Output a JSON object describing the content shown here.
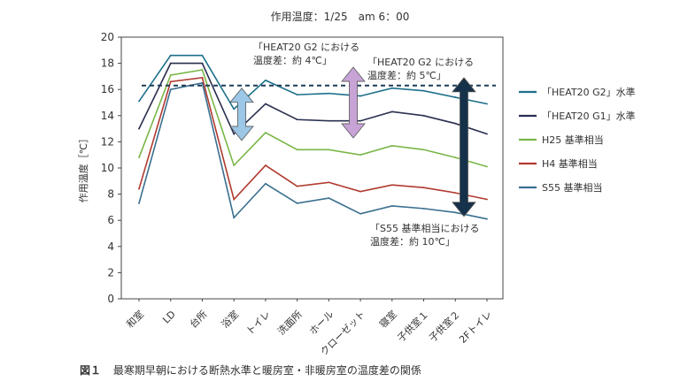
{
  "chart_data": {
    "type": "line",
    "title": "作用温度：1/25　am 6：00",
    "xlabel": "",
    "ylabel": "作用温度［℃］",
    "ylim": [
      0,
      20
    ],
    "yticks": [
      0,
      2,
      4,
      6,
      8,
      10,
      12,
      14,
      16,
      18,
      20
    ],
    "categories": [
      "和室",
      "LD",
      "台所",
      "浴室",
      "トイレ",
      "洗面所",
      "ホール",
      "クローゼット",
      "寝室",
      "子供室１",
      "子供室２",
      "2Fトイレ"
    ],
    "series": [
      {
        "name": "「HEAT20 G2」水準",
        "color": "#1d6f8a",
        "values": [
          15.1,
          18.6,
          18.6,
          14.5,
          16.7,
          15.6,
          15.7,
          15.5,
          16.1,
          15.9,
          15.4,
          14.9
        ]
      },
      {
        "name": "「HEAT20 G1」水準",
        "color": "#2a2f4f",
        "values": [
          13.0,
          18.0,
          18.0,
          12.6,
          14.9,
          13.7,
          13.6,
          13.6,
          14.3,
          14.0,
          13.4,
          12.6
        ]
      },
      {
        "name": "H25 基準相当",
        "color": "#7ab648",
        "values": [
          10.8,
          17.1,
          17.5,
          10.2,
          12.7,
          11.4,
          11.4,
          11.0,
          11.7,
          11.4,
          10.8,
          10.1
        ]
      },
      {
        "name": "H4 基準相当",
        "color": "#b03a2e",
        "values": [
          8.4,
          16.6,
          16.9,
          7.6,
          10.2,
          8.6,
          8.9,
          8.2,
          8.7,
          8.5,
          8.1,
          7.6
        ]
      },
      {
        "name": "S55 基準相当",
        "color": "#3a6f8f",
        "values": [
          7.3,
          16.0,
          16.5,
          6.2,
          8.8,
          7.3,
          7.7,
          6.5,
          7.1,
          6.9,
          6.6,
          6.1
        ]
      }
    ],
    "reference_line": {
      "value": 16.3,
      "style": "dashed",
      "color": "#1f3b57"
    },
    "annotations": [
      {
        "text": "「HEAT20 G2 における\n温度差：約 4℃」",
        "arrow_from": 16.1,
        "arrow_to": 12.1,
        "color": "#9cc7e6"
      },
      {
        "text": "「HEAT20 G2 における\n温度差：約 5℃」",
        "arrow_from": 17.7,
        "arrow_to": 12.3,
        "color": "#c7a3d6"
      },
      {
        "text": "「S55 基準相当における\n温度差：約 10℃」",
        "arrow_from": 16.9,
        "arrow_to": 6.3,
        "color": "#16324a"
      }
    ],
    "grid": false,
    "legend": "right"
  },
  "caption": {
    "fig": "図１",
    "text": "最寒期早朝における断熱水準と暖房室・非暖房室の温度差の関係"
  }
}
